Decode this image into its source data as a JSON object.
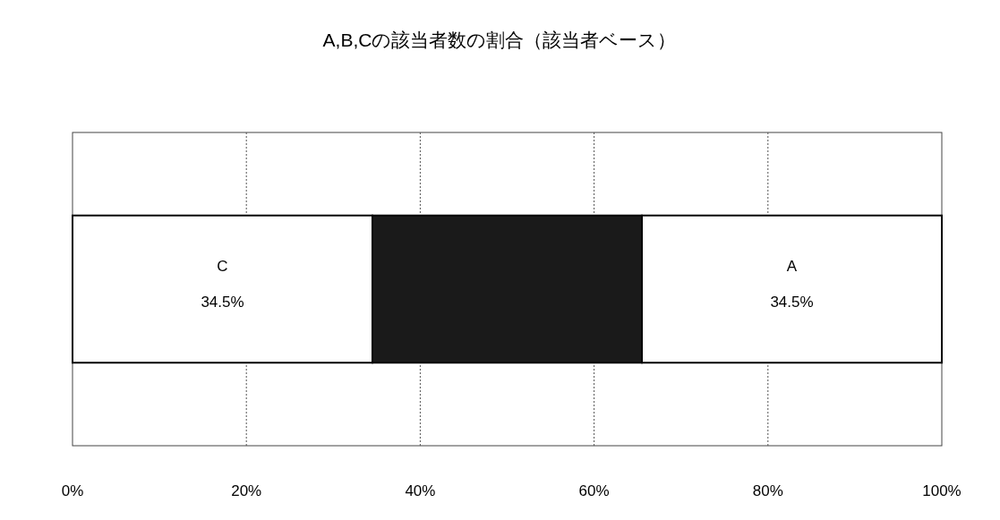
{
  "chart_data": {
    "type": "bar",
    "orientation": "horizontal",
    "stacked": true,
    "title": "A,B,Cの該当者数の割合（該当者ベース）",
    "categories": [
      null
    ],
    "series": [
      {
        "name": "C",
        "color": "#ffffff",
        "values": [
          34.5
        ],
        "value_labels": [
          "34.5%"
        ]
      },
      {
        "color": "#1a1a1a",
        "values": [
          31
        ]
      },
      {
        "name": "A",
        "color": "#ffffff",
        "values": [
          34.5
        ],
        "value_labels": [
          "34.5%"
        ]
      }
    ],
    "xlim": [
      0,
      100
    ],
    "xticks": [
      {
        "value": 0,
        "label": "0%"
      },
      {
        "value": 20,
        "label": "20%"
      },
      {
        "value": 40,
        "label": "40%"
      },
      {
        "value": 60,
        "label": "60%"
      },
      {
        "value": 80,
        "label": "80%"
      },
      {
        "value": 100,
        "label": "100%"
      }
    ],
    "grid": "x"
  }
}
